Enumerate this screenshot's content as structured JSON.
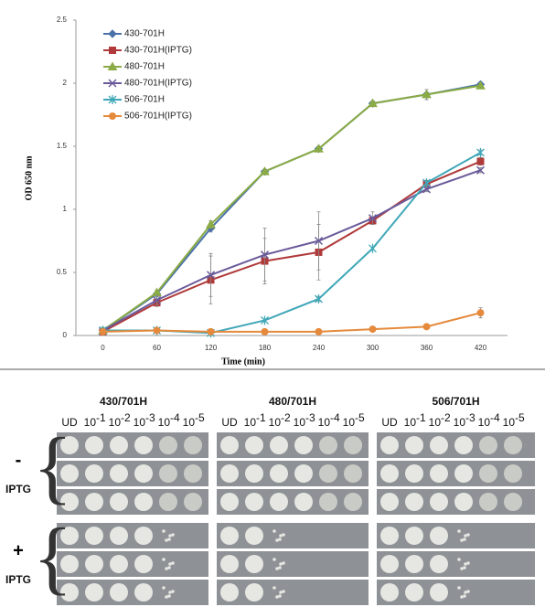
{
  "chart_data": {
    "type": "line",
    "x_label": "Time (min)",
    "y_label": "OD 650 nm",
    "categories": [
      "0",
      "60",
      "120",
      "180",
      "240",
      "300",
      "360",
      "420"
    ],
    "ylim": [
      0,
      2.5
    ],
    "yticks": [
      0,
      0.5,
      1,
      1.5,
      2,
      2.5
    ],
    "series": [
      {
        "name": "430-701H",
        "color": "#4a72a8",
        "marker": "diamond",
        "values": [
          0.04,
          0.33,
          0.85,
          1.3,
          1.48,
          1.84,
          1.91,
          1.99
        ],
        "errors": [
          0.01,
          0.02,
          0.03,
          0.01,
          0.02,
          0.02,
          0.04,
          0.02
        ]
      },
      {
        "name": "430-701H(IPTG)",
        "color": "#b03a3a",
        "marker": "square",
        "values": [
          0.03,
          0.26,
          0.44,
          0.59,
          0.66,
          0.91,
          1.2,
          1.38
        ],
        "errors": [
          0.01,
          0.03,
          0.19,
          0.18,
          0.22,
          0.03,
          0.02,
          0.03
        ]
      },
      {
        "name": "480-701H",
        "color": "#8aab45",
        "marker": "triangle",
        "values": [
          0.04,
          0.34,
          0.88,
          1.3,
          1.48,
          1.84,
          1.91,
          1.98
        ],
        "errors": [
          0.01,
          0.02,
          0.03,
          0.01,
          0.02,
          0.02,
          0.04,
          0.02
        ]
      },
      {
        "name": "480-701H(IPTG)",
        "color": "#6a5a9a",
        "marker": "x",
        "values": [
          0.04,
          0.28,
          0.48,
          0.64,
          0.75,
          0.93,
          1.16,
          1.31
        ],
        "errors": [
          0.01,
          0.04,
          0.17,
          0.21,
          0.23,
          0.05,
          0.02,
          0.02
        ]
      },
      {
        "name": "506-701H",
        "color": "#3fa7b8",
        "marker": "star",
        "values": [
          0.04,
          0.04,
          0.02,
          0.12,
          0.29,
          0.69,
          1.21,
          1.45
        ],
        "errors": [
          0.01,
          0.01,
          0.01,
          0.01,
          0.02,
          0.01,
          0.02,
          0.02
        ]
      },
      {
        "name": "506-701H(IPTG)",
        "color": "#e58a3c",
        "marker": "circle",
        "values": [
          0.03,
          0.04,
          0.03,
          0.03,
          0.03,
          0.05,
          0.07,
          0.18
        ],
        "errors": [
          0.01,
          0.01,
          0.01,
          0.01,
          0.01,
          0.01,
          0.01,
          0.04
        ]
      }
    ]
  },
  "panel": {
    "groups": [
      "430/701H",
      "480/701H",
      "506/701H"
    ],
    "dilutions": [
      "UD",
      {
        "base": "10",
        "exp": "-1"
      },
      {
        "base": "10",
        "exp": "-2"
      },
      {
        "base": "10",
        "exp": "-3"
      },
      {
        "base": "10",
        "exp": "-4"
      },
      {
        "base": "10",
        "exp": "-5"
      }
    ],
    "conditions": [
      {
        "sign": "-",
        "label": "IPTG"
      },
      {
        "sign": "+",
        "label": "IPTG"
      }
    ]
  }
}
